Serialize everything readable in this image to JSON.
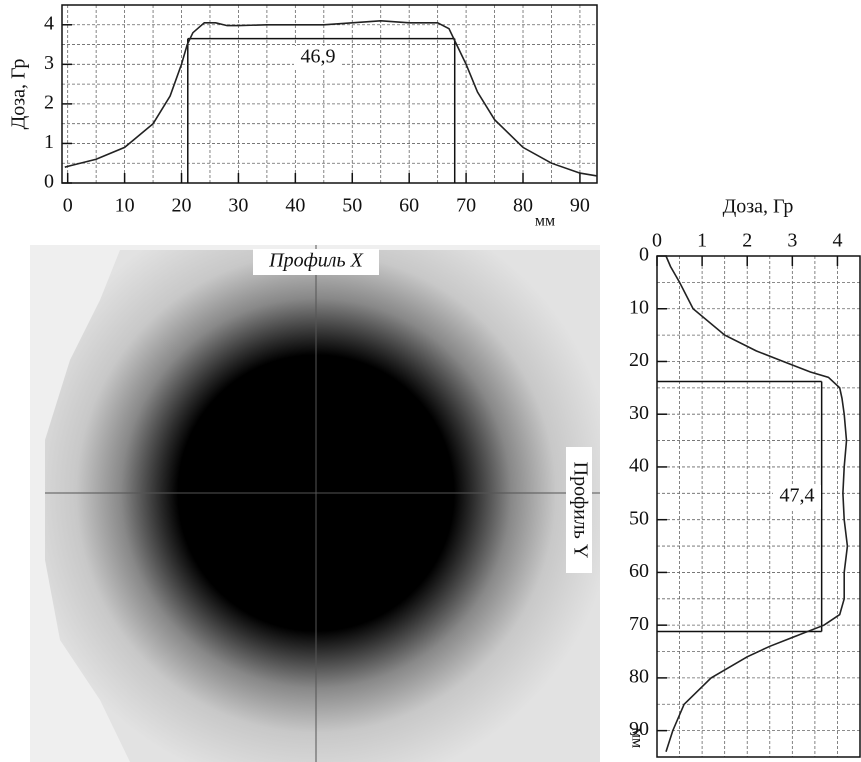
{
  "chart_data": [
    {
      "type": "line",
      "orientation": "horizontal",
      "y_label": "Доза, Гр",
      "x_unit": "мм",
      "annotation": "46,9",
      "x": [
        -0.5,
        0,
        5,
        10,
        15,
        18,
        20,
        21,
        22,
        24,
        26,
        28,
        30,
        35,
        40,
        45,
        50,
        55,
        60,
        65,
        67,
        68,
        70,
        72,
        75,
        80,
        85,
        90,
        93
      ],
      "values": [
        0.4,
        0.42,
        0.6,
        0.9,
        1.5,
        2.2,
        3.0,
        3.5,
        3.8,
        4.05,
        4.05,
        3.98,
        3.98,
        4.0,
        4.0,
        4.0,
        4.05,
        4.1,
        4.05,
        4.05,
        3.9,
        3.6,
        3.0,
        2.3,
        1.6,
        0.9,
        0.5,
        0.25,
        0.18
      ],
      "color": "#222",
      "xlim": [
        -1,
        93
      ],
      "ylim": [
        0,
        4.5
      ],
      "xticks": [
        0,
        10,
        20,
        30,
        40,
        50,
        60,
        70,
        80,
        90
      ],
      "yticks": [
        0,
        1,
        2,
        3,
        4
      ],
      "xgrid": [
        0,
        5,
        10,
        15,
        20,
        25,
        30,
        35,
        40,
        45,
        50,
        55,
        60,
        65,
        70,
        75,
        80,
        85,
        90
      ],
      "ygrid": [
        0.5,
        1,
        1.5,
        2,
        2.5,
        3,
        3.5,
        4
      ],
      "marker": {
        "level": 3.65,
        "from": 21.1,
        "to": 68.0
      }
    },
    {
      "type": "line",
      "orientation": "vertical",
      "y_label": "Доза, Гр",
      "x_unit": "мм",
      "annotation": "47,4",
      "x": [
        0,
        2,
        5,
        10,
        15,
        18,
        20,
        22,
        23,
        25,
        27,
        30,
        35,
        40,
        45,
        50,
        55,
        60,
        65,
        68,
        70,
        72,
        74,
        76,
        80,
        85,
        90,
        94
      ],
      "values": [
        0.2,
        0.3,
        0.5,
        0.8,
        1.5,
        2.2,
        2.8,
        3.4,
        3.8,
        4.05,
        4.1,
        4.15,
        4.2,
        4.15,
        4.12,
        4.15,
        4.22,
        4.15,
        4.15,
        4.05,
        3.7,
        3.1,
        2.5,
        2.0,
        1.2,
        0.6,
        0.35,
        0.2
      ],
      "color": "#222",
      "xlim": [
        0,
        95
      ],
      "ylim": [
        0,
        4.5
      ],
      "xticks": [
        0,
        10,
        20,
        30,
        40,
        50,
        60,
        70,
        80,
        90
      ],
      "yticks": [
        0,
        1,
        2,
        3,
        4
      ],
      "xgrid": [
        5,
        10,
        15,
        20,
        25,
        30,
        35,
        40,
        45,
        50,
        55,
        60,
        65,
        70,
        75,
        80,
        85,
        90,
        95
      ],
      "ygrid": [
        0.5,
        1,
        1.5,
        2,
        2.5,
        3,
        3.5,
        4
      ],
      "marker": {
        "level": 3.65,
        "from": 23.8,
        "to": 71.2
      }
    }
  ],
  "film": {
    "profile_x": "Профиль X",
    "profile_y": "Профиль Y"
  }
}
